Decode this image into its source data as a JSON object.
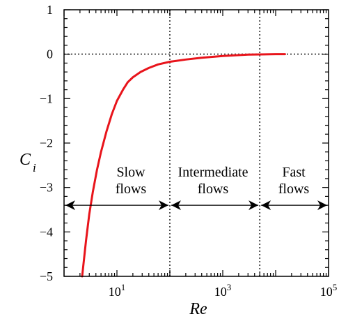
{
  "chart_data": {
    "type": "line",
    "x_scale": "log",
    "xlabel": "Re",
    "ylabel_main": "C",
    "ylabel_sub": "i",
    "xlim": [
      1,
      100000
    ],
    "ylim": [
      -5,
      1
    ],
    "x_ticks": [
      {
        "value": 10,
        "base": "10",
        "exp": "1"
      },
      {
        "value": 1000,
        "base": "10",
        "exp": "3"
      },
      {
        "value": 100000,
        "base": "10",
        "exp": "5"
      }
    ],
    "y_ticks": [
      {
        "value": 1,
        "label": "1"
      },
      {
        "value": 0,
        "label": "0"
      },
      {
        "value": -1,
        "label": "−1"
      },
      {
        "value": -2,
        "label": "−2"
      },
      {
        "value": -3,
        "label": "−3"
      },
      {
        "value": -4,
        "label": "−4"
      },
      {
        "value": -5,
        "label": "−5"
      }
    ],
    "series": [
      {
        "color": "#e8141b",
        "x": [
          2.2,
          2.6,
          3.0,
          3.5,
          4.2,
          5.0,
          6.3,
          8.0,
          10,
          13,
          16,
          20,
          28,
          40,
          60,
          100,
          200,
          400,
          1000,
          3000,
          10000,
          15000
        ],
        "y": [
          -5.0,
          -4.2,
          -3.6,
          -3.1,
          -2.6,
          -2.2,
          -1.75,
          -1.35,
          -1.05,
          -0.8,
          -0.63,
          -0.52,
          -0.4,
          -0.31,
          -0.23,
          -0.17,
          -0.12,
          -0.08,
          -0.04,
          -0.01,
          0.0,
          0.0
        ]
      }
    ],
    "reference_lines": [
      {
        "orientation": "horizontal",
        "value": 0,
        "style": "dotted"
      },
      {
        "orientation": "vertical",
        "value": 100,
        "style": "dotted"
      },
      {
        "orientation": "vertical",
        "value": 5000,
        "style": "dotted"
      }
    ],
    "regions": [
      {
        "line1": "Slow",
        "line2": "flows",
        "x_from": 1,
        "x_to": 100,
        "arrow_y": -3.4
      },
      {
        "line1": "Intermediate",
        "line2": "flows",
        "x_from": 100,
        "x_to": 5000,
        "arrow_y": -3.4
      },
      {
        "line1": "Fast",
        "line2": "flows",
        "x_from": 5000,
        "x_to": 100000,
        "arrow_y": -3.4
      }
    ],
    "grid": false
  }
}
